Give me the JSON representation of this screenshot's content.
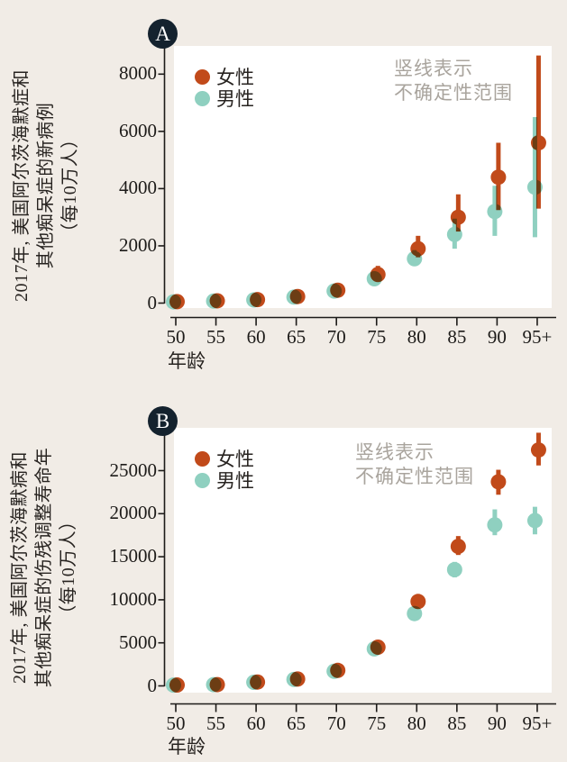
{
  "colors": {
    "background": "#f1ece6",
    "plot_background": "#ffffff",
    "badge": "#14222e",
    "axis": "#1d1b19",
    "annotation_text": "#a9a49d",
    "female": "#c14a1a",
    "male": "#8fd0c0"
  },
  "panels": [
    {
      "badge": "A",
      "ylabel_line1": "2017年, 美国阿尔茨海默症和",
      "ylabel_line2": "其他痴呆症的新病例",
      "ylabel_line3": "（每10万人）",
      "xlabel": "年龄",
      "annotation_line1": "竖线表示",
      "annotation_line2": "不确定性范围"
    },
    {
      "badge": "B",
      "ylabel_line1": "2017年, 美国阿尔茨海默病和",
      "ylabel_line2": "其他痴呆症的伤残调整寿命年",
      "ylabel_line3": "（每10万人）",
      "xlabel": "年龄",
      "annotation_line1": "竖线表示",
      "annotation_line2": "不确定性范围"
    }
  ],
  "chart_data": [
    {
      "type": "scatter",
      "panel": "A",
      "title": "2017年, 美国阿尔茨海默症和其他痴呆症的新病例（每10万人）",
      "xlabel": "年龄",
      "ylabel": "新病例（每10万人）",
      "categories": [
        "50",
        "55",
        "60",
        "65",
        "70",
        "75",
        "80",
        "85",
        "90",
        "95+"
      ],
      "yticks": [
        0,
        2000,
        4000,
        6000,
        8000
      ],
      "ylim": [
        0,
        8800
      ],
      "grid": false,
      "legend_position": "top-left-inside",
      "annotation": "竖线表示不确定性范围",
      "error_bars": true,
      "series": [
        {
          "name": "女性",
          "color": "#c14a1a",
          "values": [
            50,
            80,
            120,
            230,
            450,
            1000,
            1900,
            3000,
            4400,
            5600
          ],
          "ci_low": [
            40,
            65,
            100,
            200,
            400,
            870,
            1600,
            2500,
            3250,
            3300
          ],
          "ci_high": [
            60,
            95,
            145,
            265,
            520,
            1300,
            2350,
            3800,
            5600,
            8650
          ]
        },
        {
          "name": "男性",
          "color": "#8fd0c0",
          "values": [
            45,
            70,
            110,
            210,
            420,
            850,
            1550,
            2400,
            3200,
            4050
          ],
          "ci_low": [
            35,
            55,
            90,
            180,
            370,
            700,
            1300,
            1900,
            2350,
            2300
          ],
          "ci_high": [
            55,
            85,
            130,
            240,
            480,
            1000,
            1850,
            2950,
            4100,
            6500
          ]
        }
      ]
    },
    {
      "type": "scatter",
      "panel": "B",
      "title": "2017年, 美国阿尔茨海默病和其他痴呆症的伤残调整寿命年（每10万人）",
      "xlabel": "年龄",
      "ylabel": "伤残调整寿命年（每10万人）",
      "categories": [
        "50",
        "55",
        "60",
        "65",
        "70",
        "75",
        "80",
        "85",
        "90",
        "95+"
      ],
      "yticks": [
        0,
        5000,
        10000,
        15000,
        20000,
        25000
      ],
      "ylim": [
        0,
        30000
      ],
      "grid": false,
      "legend_position": "top-left-inside",
      "annotation": "竖线表示不确定性范围",
      "error_bars": true,
      "series": [
        {
          "name": "女性",
          "color": "#c14a1a",
          "values": [
            100,
            150,
            450,
            800,
            1800,
            4500,
            9800,
            16200,
            23700,
            27400
          ],
          "ci_low": [
            85,
            125,
            390,
            700,
            1650,
            4200,
            9400,
            15200,
            22200,
            25600
          ],
          "ci_high": [
            115,
            175,
            510,
            900,
            1950,
            4800,
            10200,
            17400,
            25100,
            29400
          ]
        },
        {
          "name": "男性",
          "color": "#8fd0c0",
          "values": [
            90,
            140,
            420,
            750,
            1700,
            4300,
            8400,
            13500,
            18700,
            19200
          ],
          "ci_low": [
            78,
            118,
            365,
            655,
            1550,
            4000,
            8000,
            12600,
            17500,
            17600
          ],
          "ci_high": [
            102,
            162,
            475,
            845,
            1850,
            4600,
            8800,
            14400,
            20500,
            20800
          ]
        }
      ]
    }
  ]
}
